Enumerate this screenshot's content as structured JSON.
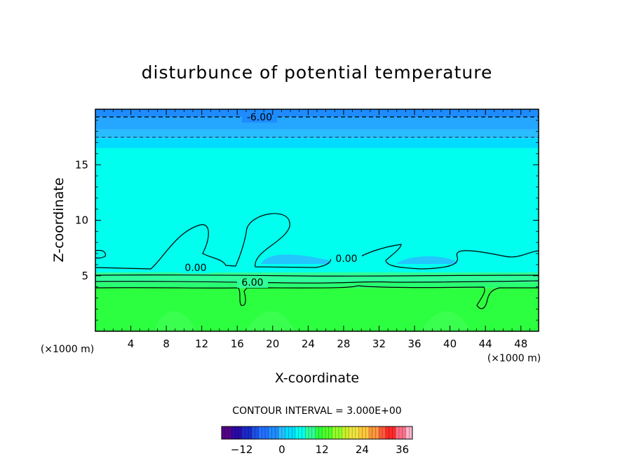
{
  "chart_data": {
    "type": "heatmap",
    "title": "disturbunce of potential temperature",
    "xlabel": "X-coordinate",
    "ylabel": "Z-coordinate",
    "x_unit": "(×1000 m)",
    "z_unit": "(×1000 m)",
    "xlim": [
      0,
      50
    ],
    "ylim": [
      0,
      20
    ],
    "x_ticks": [
      4,
      8,
      12,
      16,
      20,
      24,
      28,
      32,
      36,
      40,
      44,
      48
    ],
    "y_ticks": [
      5,
      10,
      15
    ],
    "contour_interval_text": "CONTOUR INTERVAL = 3.000E+00",
    "contour_labels": [
      {
        "text": "-6.00",
        "x": 19,
        "z": 19.4
      },
      {
        "text": "0.00",
        "x": 11,
        "z": 5.9
      },
      {
        "text": "0.00",
        "x": 28,
        "z": 6.7
      },
      {
        "text": "6.00",
        "x": 17,
        "z": 4.5
      }
    ],
    "bands": [
      {
        "z_from": 19.3,
        "z_to": 20.0,
        "color": "#1e8cff"
      },
      {
        "z_from": 18.2,
        "z_to": 19.3,
        "color": "#25a6ff"
      },
      {
        "z_from": 17.4,
        "z_to": 18.2,
        "color": "#29bcff"
      },
      {
        "z_from": 16.5,
        "z_to": 17.4,
        "color": "#00dcff"
      },
      {
        "z_from": 5.3,
        "z_to": 16.5,
        "color": "#00ffee"
      },
      {
        "z_from": 4.4,
        "z_to": 5.3,
        "color": "#2fff9a"
      },
      {
        "z_from": 3.9,
        "z_to": 4.4,
        "color": "#28ff72"
      },
      {
        "z_from": 0.0,
        "z_to": 3.9,
        "color": "#2cff40"
      }
    ],
    "colorbar": {
      "ticks": [
        -12,
        0,
        12,
        24,
        36
      ],
      "range": [
        -18,
        39
      ],
      "colors": [
        "#550088",
        "#2a0aa6",
        "#1a28c8",
        "#1c50e6",
        "#2270ff",
        "#1e8cff",
        "#29bcff",
        "#00dcff",
        "#00ffee",
        "#2fff9a",
        "#2cff40",
        "#50ff28",
        "#90ff28",
        "#c8f028",
        "#eee640",
        "#ffc83c",
        "#ff963c",
        "#ff5a3c",
        "#ff2a28",
        "#ff6e88",
        "#ffb4c8"
      ]
    }
  }
}
